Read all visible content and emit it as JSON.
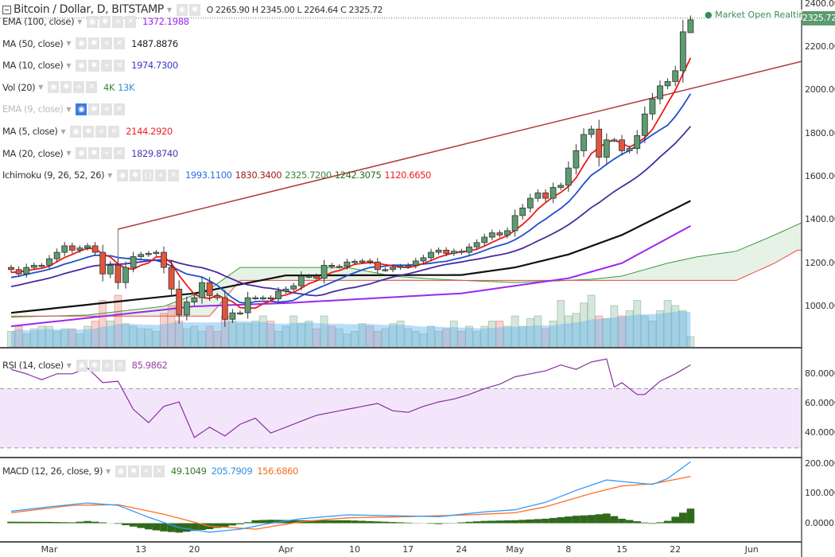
{
  "header": {
    "title": "Bitcoin / Dollar, D, BITSTAMP",
    "ohlc": "O 2265.90 H 2345.00 L 2264.64 C 2325.72",
    "market_status": "Market Open",
    "realtime": "Realtime",
    "last_price": "2325.72"
  },
  "legends": [
    {
      "name": "EMA (100, close)",
      "values": [
        {
          "v": "1372.1988",
          "color": "#9c27f0"
        }
      ]
    },
    {
      "name": "MA (50, close)",
      "values": [
        {
          "v": "1487.8876",
          "color": "#222222"
        }
      ]
    },
    {
      "name": "MA (10, close)",
      "values": [
        {
          "v": "1974.7300",
          "color": "#3a3ac8"
        }
      ]
    },
    {
      "name": "Vol (20)",
      "values": [
        {
          "v": "4K",
          "color": "#3a8a3a"
        },
        {
          "v": "13K",
          "color": "#2f8fe0"
        }
      ]
    },
    {
      "name": "EMA (9, close)",
      "values": [],
      "dimmed": true
    },
    {
      "name": "MA (5, close)",
      "values": [
        {
          "v": "2144.2920",
          "color": "#f02020"
        }
      ]
    },
    {
      "name": "MA (20, close)",
      "values": [
        {
          "v": "1829.8740",
          "color": "#4a3ab0"
        }
      ]
    },
    {
      "name": "Ichimoku (9, 26, 52, 26)",
      "values": [
        {
          "v": "1993.1100",
          "color": "#2f6fe0"
        },
        {
          "v": "1830.3400",
          "color": "#a02020"
        },
        {
          "v": "2325.7200",
          "color": "#3a8a3a"
        },
        {
          "v": "1242.3075",
          "color": "#2a6a2a"
        },
        {
          "v": "1120.6650",
          "color": "#f02020"
        }
      ]
    }
  ],
  "rsi_legend": {
    "name": "RSI (14, close)",
    "value": "85.9862",
    "color": "#9c3fb0"
  },
  "macd_legend": {
    "name": "MACD (12, 26, close, 9)",
    "values": [
      {
        "v": "49.1049",
        "color": "#3a7a2a"
      },
      {
        "v": "205.7909",
        "color": "#2f8fe0"
      },
      {
        "v": "156.6860",
        "color": "#f07020"
      }
    ]
  },
  "price_axis": [
    "2400.00",
    "2200.00",
    "2000.00",
    "1800.00",
    "1600.00",
    "1400.00",
    "1200.00",
    "1000.00"
  ],
  "rsi_axis": [
    "80.0000",
    "60.0000",
    "40.0000"
  ],
  "macd_axis": [
    "200.0000",
    "100.0000",
    "0.0000"
  ],
  "time_axis": [
    {
      "label": "Mar",
      "day": 5
    },
    {
      "label": "13",
      "day": 17
    },
    {
      "label": "20",
      "day": 24
    },
    {
      "label": "Apr",
      "day": 36
    },
    {
      "label": "10",
      "day": 45
    },
    {
      "label": "17",
      "day": 52
    },
    {
      "label": "24",
      "day": 59
    },
    {
      "label": "May",
      "day": 66
    },
    {
      "label": "8",
      "day": 73
    },
    {
      "label": "15",
      "day": 80
    },
    {
      "label": "22",
      "day": 87
    },
    {
      "label": "Jun",
      "day": 97
    }
  ],
  "colors": {
    "up": "#5c9c70",
    "down": "#e0553e",
    "ma5": "#f01818",
    "ma10": "#1f4fd0",
    "ma20": "#4a2aa0",
    "ma50": "#111111",
    "ema100": "#9c27f0",
    "spanA": "#3a9a3a",
    "spanB": "#e84a4a",
    "trend": "#b03a3a",
    "rsi": "#8a2fa0",
    "macd": "#3399ff",
    "signal": "#ff7020",
    "hist": "#2f6a1a"
  },
  "chart_data": {
    "type": "candlestick",
    "title": "Bitcoin / Dollar, D, BITSTAMP",
    "x_start": "Feb 24",
    "ylim": [
      830,
      2420
    ],
    "closes": [
      1170,
      1150,
      1180,
      1190,
      1190,
      1220,
      1250,
      1280,
      1260,
      1270,
      1280,
      1250,
      1150,
      1190,
      1110,
      1180,
      1230,
      1240,
      1245,
      1250,
      1180,
      1080,
      960,
      1020,
      1040,
      1110,
      1050,
      1040,
      940,
      970,
      970,
      1040,
      1040,
      1040,
      1035,
      1070,
      1080,
      1095,
      1140,
      1140,
      1130,
      1190,
      1185,
      1185,
      1205,
      1208,
      1210,
      1205,
      1170,
      1170,
      1180,
      1185,
      1190,
      1210,
      1225,
      1250,
      1260,
      1245,
      1255,
      1250,
      1275,
      1295,
      1320,
      1340,
      1330,
      1350,
      1420,
      1455,
      1500,
      1525,
      1500,
      1550,
      1560,
      1640,
      1720,
      1795,
      1820,
      1690,
      1770,
      1770,
      1720,
      1730,
      1790,
      1890,
      1960,
      2020,
      2040,
      2090,
      2270,
      2325.72
    ],
    "first_open": 1180,
    "last_candle": {
      "open": 2265.9,
      "high": 2345.0,
      "low": 2264.64,
      "close": 2325.72
    },
    "prior_closes": [
      1000,
      1010,
      1020,
      1030,
      1040,
      1050,
      1055,
      1060,
      1070,
      1080,
      1085,
      1090,
      1100,
      1110,
      1120,
      1130,
      1140,
      1150,
      1160,
      1165
    ],
    "volume_k": [
      3,
      4,
      2.5,
      3.5,
      4,
      4,
      3,
      3.5,
      3.5,
      2.5,
      4,
      5,
      9,
      5,
      10,
      4.5,
      4,
      3.5,
      3.5,
      3,
      6.5,
      8,
      5,
      3.5,
      4,
      3,
      4,
      3,
      6,
      5,
      4.5,
      4.5,
      5,
      6,
      5,
      3,
      4,
      6,
      4.5,
      5,
      3.5,
      6,
      4,
      3.5,
      2.5,
      3,
      4.5,
      4,
      3,
      3.5,
      4.5,
      5,
      3.5,
      3,
      2.5,
      4,
      3,
      3.5,
      5,
      3,
      4,
      3,
      4,
      5,
      5,
      4,
      6,
      4,
      5.5,
      6,
      3.5,
      5,
      9,
      6,
      6.5,
      8.5,
      10,
      6,
      5.5,
      8,
      6,
      7,
      9,
      6,
      5,
      7,
      9,
      8,
      7,
      2
    ],
    "ma50_keys": [
      [
        0,
        970
      ],
      [
        24,
        1060
      ],
      [
        36,
        1143
      ],
      [
        59,
        1145
      ],
      [
        66,
        1180
      ],
      [
        73,
        1240
      ],
      [
        80,
        1330
      ],
      [
        89,
        1488
      ]
    ],
    "ema100_keys": [
      [
        0,
        908
      ],
      [
        24,
        1000
      ],
      [
        36,
        1015
      ],
      [
        59,
        1060
      ],
      [
        73,
        1130
      ],
      [
        80,
        1200
      ],
      [
        89,
        1372
      ]
    ],
    "spanA_keys": [
      [
        0,
        950
      ],
      [
        10,
        960
      ],
      [
        20,
        1000
      ],
      [
        26,
        1080
      ],
      [
        30,
        1180
      ],
      [
        44,
        1180
      ],
      [
        50,
        1140
      ],
      [
        56,
        1125
      ],
      [
        66,
        1110
      ],
      [
        76,
        1125
      ],
      [
        80,
        1140
      ],
      [
        86,
        1200
      ],
      [
        90,
        1230
      ],
      [
        95,
        1255
      ],
      [
        100,
        1330
      ],
      [
        105,
        1410
      ],
      [
        110,
        1425
      ],
      [
        113,
        1500
      ],
      [
        116,
        1590
      ],
      [
        119,
        1600
      ]
    ],
    "spanB_keys": [
      [
        0,
        955
      ],
      [
        26,
        955
      ],
      [
        30,
        1120
      ],
      [
        95,
        1120
      ],
      [
        100,
        1200
      ],
      [
        103,
        1260
      ],
      [
        108,
        1260
      ],
      [
        111,
        1330
      ],
      [
        116,
        1400
      ],
      [
        119,
        1400
      ]
    ],
    "trendline": {
      "from": [
        14,
        1357
      ],
      "to": [
        104,
        2133
      ]
    },
    "rsi_keys": [
      [
        0,
        83
      ],
      [
        2,
        80
      ],
      [
        4,
        76
      ],
      [
        6,
        80
      ],
      [
        8,
        80
      ],
      [
        10,
        84
      ],
      [
        12,
        74
      ],
      [
        14,
        75
      ],
      [
        16,
        56
      ],
      [
        18,
        47
      ],
      [
        20,
        58
      ],
      [
        22,
        61
      ],
      [
        24,
        37
      ],
      [
        26,
        44
      ],
      [
        28,
        38
      ],
      [
        30,
        46
      ],
      [
        32,
        50
      ],
      [
        34,
        40
      ],
      [
        36,
        44
      ],
      [
        38,
        48
      ],
      [
        40,
        52
      ],
      [
        42,
        54
      ],
      [
        44,
        56
      ],
      [
        46,
        58
      ],
      [
        48,
        60
      ],
      [
        50,
        55
      ],
      [
        52,
        54
      ],
      [
        54,
        58
      ],
      [
        56,
        61
      ],
      [
        58,
        63
      ],
      [
        60,
        66
      ],
      [
        62,
        70
      ],
      [
        64,
        73
      ],
      [
        66,
        78
      ],
      [
        68,
        80
      ],
      [
        70,
        82
      ],
      [
        72,
        86
      ],
      [
        74,
        83
      ],
      [
        76,
        88
      ],
      [
        78,
        90
      ],
      [
        79,
        71
      ],
      [
        80,
        74
      ],
      [
        82,
        66
      ],
      [
        83,
        66
      ],
      [
        85,
        75
      ],
      [
        87,
        80
      ],
      [
        89,
        86
      ]
    ],
    "macd_keys": [
      [
        0,
        40
      ],
      [
        5,
        55
      ],
      [
        10,
        68
      ],
      [
        14,
        60
      ],
      [
        18,
        20
      ],
      [
        22,
        -15
      ],
      [
        26,
        -30
      ],
      [
        30,
        -20
      ],
      [
        34,
        0
      ],
      [
        38,
        15
      ],
      [
        44,
        28
      ],
      [
        50,
        25
      ],
      [
        56,
        22
      ],
      [
        62,
        38
      ],
      [
        66,
        45
      ],
      [
        70,
        70
      ],
      [
        74,
        110
      ],
      [
        78,
        145
      ],
      [
        80,
        140
      ],
      [
        84,
        130
      ],
      [
        86,
        150
      ],
      [
        89,
        206
      ]
    ],
    "signal_keys": [
      [
        0,
        35
      ],
      [
        8,
        60
      ],
      [
        14,
        62
      ],
      [
        20,
        30
      ],
      [
        26,
        -10
      ],
      [
        32,
        -20
      ],
      [
        38,
        5
      ],
      [
        44,
        18
      ],
      [
        52,
        22
      ],
      [
        60,
        28
      ],
      [
        66,
        35
      ],
      [
        70,
        55
      ],
      [
        76,
        100
      ],
      [
        80,
        125
      ],
      [
        84,
        132
      ],
      [
        89,
        157
      ]
    ],
    "rsi_levels": [
      70,
      30
    ],
    "rsi_ylim": [
      24,
      96
    ],
    "macd_ylim": [
      -60,
      215
    ]
  }
}
